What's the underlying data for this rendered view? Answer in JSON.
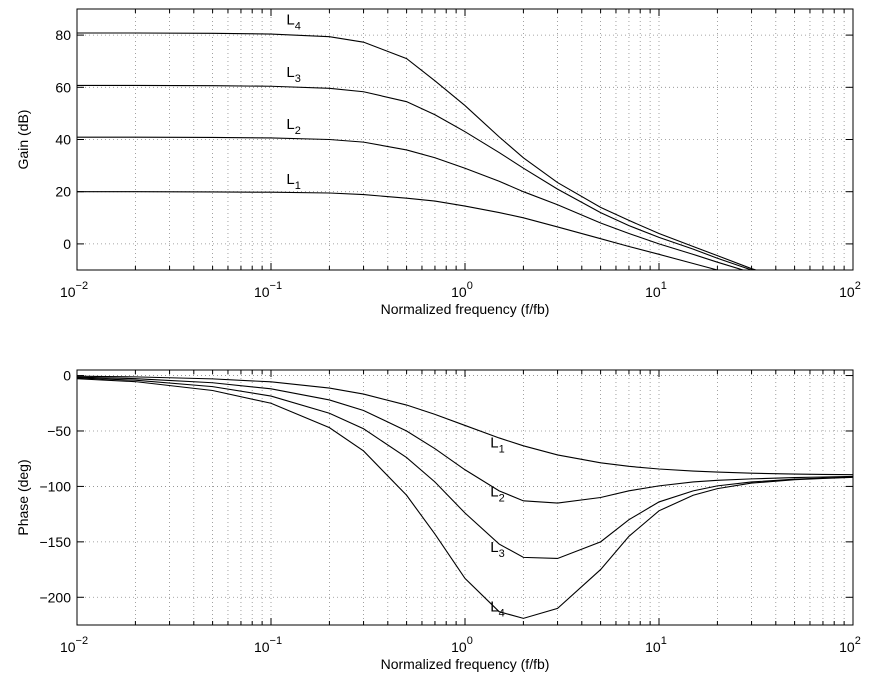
{
  "chart_data": [
    {
      "type": "line",
      "xlabel": "Normalized frequency (f/fb)",
      "ylabel": "Gain (dB)",
      "xscale": "log",
      "xlim": [
        0.01,
        100
      ],
      "ylim": [
        -10,
        90
      ],
      "yticks": [
        0,
        20,
        40,
        60,
        80
      ],
      "xticks": [
        0.01,
        0.1,
        1,
        10,
        100
      ],
      "xtick_labels": [
        {
          "base": "10",
          "exp": "−2"
        },
        {
          "base": "10",
          "exp": "−1"
        },
        {
          "base": "10",
          "exp": "0"
        },
        {
          "base": "10",
          "exp": "1"
        },
        {
          "base": "10",
          "exp": "2"
        }
      ],
      "grid": true,
      "x": [
        0.01,
        0.02,
        0.05,
        0.1,
        0.2,
        0.3,
        0.5,
        0.7,
        1,
        1.5,
        2,
        3,
        5,
        7,
        10,
        15,
        20,
        30,
        50,
        70,
        100
      ],
      "series": [
        {
          "name": "L",
          "sub": "1",
          "values": [
            20,
            20,
            19.9,
            19.8,
            19.5,
            18.9,
            17.5,
            16.4,
            14.5,
            12.0,
            10.0,
            6.5,
            2.0,
            -1.0,
            -4.0,
            -7.5,
            -10,
            -13,
            -17,
            -20,
            -23
          ],
          "label_x": 0.12,
          "label_y": 23
        },
        {
          "name": "L",
          "sub": "2",
          "values": [
            40.9,
            40.9,
            40.8,
            40.6,
            40.0,
            39.0,
            36.0,
            33.0,
            29.0,
            24.0,
            20.0,
            15.0,
            8.0,
            4.0,
            0.0,
            -4.0,
            -7.0,
            -11.0,
            -16.0,
            -19.0,
            -22.0
          ],
          "label_x": 0.12,
          "label_y": 44
        },
        {
          "name": "L",
          "sub": "3",
          "values": [
            60.7,
            60.7,
            60.6,
            60.4,
            59.6,
            58.3,
            54.5,
            49.5,
            43.0,
            35.0,
            29.0,
            21.0,
            12.0,
            7.0,
            2.5,
            -2.0,
            -5.5,
            -10.0,
            -15.0,
            -18.5,
            -22.0
          ],
          "label_x": 0.12,
          "label_y": 64
        },
        {
          "name": "L",
          "sub": "4",
          "values": [
            80.8,
            80.8,
            80.7,
            80.4,
            79.4,
            77.3,
            71.0,
            62.5,
            53.0,
            41.0,
            33.0,
            23.5,
            14.0,
            9.0,
            4.0,
            -1.0,
            -4.5,
            -9.5,
            -14.5,
            -18.0,
            -21.5
          ],
          "label_x": 0.12,
          "label_y": 84
        }
      ]
    },
    {
      "type": "line",
      "xlabel": "Normalized frequency (f/fb)",
      "ylabel": "Phase (deg)",
      "xscale": "log",
      "xlim": [
        0.01,
        100
      ],
      "ylim": [
        -225,
        5
      ],
      "yticks": [
        -200,
        -150,
        -100,
        -50,
        0
      ],
      "ytick_labels": [
        "−200",
        "−150",
        "−100",
        "−50",
        "0"
      ],
      "xticks": [
        0.01,
        0.1,
        1,
        10,
        100
      ],
      "xtick_labels": [
        {
          "base": "10",
          "exp": "−2"
        },
        {
          "base": "10",
          "exp": "−1"
        },
        {
          "base": "10",
          "exp": "0"
        },
        {
          "base": "10",
          "exp": "1"
        },
        {
          "base": "10",
          "exp": "2"
        }
      ],
      "grid": true,
      "x": [
        0.01,
        0.02,
        0.05,
        0.1,
        0.2,
        0.3,
        0.5,
        0.7,
        1,
        1.5,
        2,
        3,
        5,
        7,
        10,
        15,
        20,
        30,
        50,
        70,
        100
      ],
      "series": [
        {
          "name": "L",
          "sub": "1",
          "values": [
            -0.6,
            -1.2,
            -3.0,
            -5.7,
            -11.3,
            -16.7,
            -26.6,
            -35.0,
            -45.0,
            -56.3,
            -63.4,
            -71.6,
            -78.7,
            -81.9,
            -84.3,
            -86.2,
            -87.1,
            -88.1,
            -88.9,
            -89.2,
            -89.4
          ],
          "label_x": 1.35,
          "label_y": -65
        },
        {
          "name": "L",
          "sub": "2",
          "values": [
            -1.5,
            -2.8,
            -6.5,
            -12.0,
            -22.0,
            -31.5,
            -50.0,
            -66.0,
            -85.0,
            -104.0,
            -113.0,
            -115.0,
            -110.0,
            -104.0,
            -99.5,
            -96.0,
            -94.5,
            -93.2,
            -92.0,
            -91.5,
            -91.0
          ],
          "label_x": 1.35,
          "label_y": -109
        },
        {
          "name": "L",
          "sub": "3",
          "values": [
            -2.2,
            -4.2,
            -10.0,
            -18.5,
            -34.0,
            -48.0,
            -74.0,
            -96.0,
            -124.0,
            -152.0,
            -164.0,
            -165.0,
            -150.0,
            -130.0,
            -114.0,
            -104.0,
            -99.5,
            -96.0,
            -93.5,
            -92.5,
            -91.5
          ],
          "label_x": 1.35,
          "label_y": -159
        },
        {
          "name": "L",
          "sub": "4",
          "values": [
            -2.9,
            -5.5,
            -13.5,
            -25.0,
            -47.0,
            -68.0,
            -108.0,
            -143.0,
            -183.0,
            -213.0,
            -219.0,
            -210.0,
            -175.0,
            -145.0,
            -122.0,
            -108.0,
            -102.0,
            -97.0,
            -94.0,
            -92.8,
            -91.8
          ],
          "label_x": 1.35,
          "label_y": -213
        }
      ]
    }
  ]
}
